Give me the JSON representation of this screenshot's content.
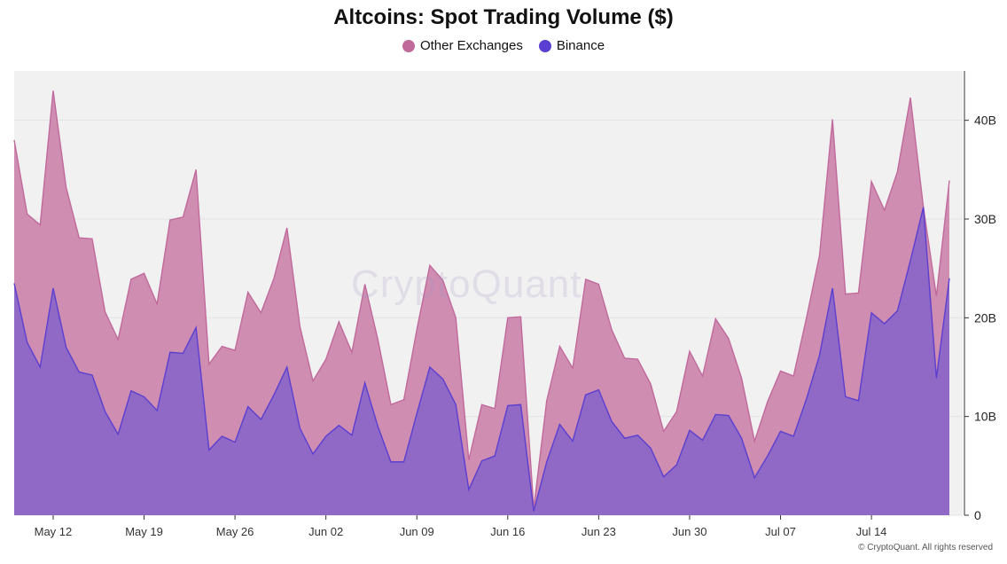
{
  "chart_data": {
    "type": "area",
    "title": "Altcoins: Spot Trading Volume ($)",
    "xlabel": "",
    "ylabel": "",
    "ylim": [
      0,
      45
    ],
    "y_unit": "B",
    "y_ticks": [
      "0",
      "10B",
      "20B",
      "30B",
      "40B"
    ],
    "y_tick_values": [
      0,
      10,
      20,
      30,
      40
    ],
    "x_tick_labels": [
      "May 12",
      "May 19",
      "May 26",
      "Jun 02",
      "Jun 09",
      "Jun 16",
      "Jun 23",
      "Jun 30",
      "Jul 07",
      "Jul 14"
    ],
    "x_tick_indices": [
      3,
      10,
      17,
      24,
      31,
      38,
      45,
      52,
      59,
      66
    ],
    "grid": true,
    "stacked": true,
    "legend_position": "top-center",
    "series": [
      {
        "name": "Binance",
        "color": "#5a3fd0",
        "fill": "#9068c6",
        "values": [
          23.5,
          17.5,
          15,
          23,
          17,
          14.5,
          14.2,
          10.5,
          8.2,
          12.6,
          12,
          10.6,
          16.5,
          16.4,
          19,
          6.6,
          8,
          7.4,
          11,
          9.7,
          12.2,
          15,
          8.8,
          6.2,
          8,
          9.1,
          8.1,
          13.4,
          9,
          5.4,
          5.4,
          10.3,
          15,
          13.8,
          11.2,
          2.6,
          5.5,
          6,
          11.1,
          11.2,
          0.4,
          5.4,
          9.2,
          7.5,
          12.2,
          12.7,
          9.5,
          7.8,
          8.1,
          6.8,
          3.9,
          5.1,
          8.6,
          7.6,
          10.2,
          10.1,
          7.8,
          3.8,
          6,
          8.5,
          8,
          11.8,
          16.2,
          23,
          12,
          11.6,
          20.5,
          19.4,
          20.7,
          25.8,
          31.2,
          13.9,
          24
        ]
      },
      {
        "name": "Other Exchanges",
        "color": "#c06a9c",
        "fill": "#cf8db1",
        "values": [
          14.5,
          13,
          14.4,
          20,
          16.2,
          13.6,
          13.8,
          10.1,
          9.6,
          11.3,
          12.5,
          10.8,
          13.4,
          13.8,
          16,
          8.7,
          9.1,
          9.3,
          11.6,
          10.8,
          11.8,
          14.1,
          10.3,
          7.4,
          7.8,
          10.5,
          8.4,
          10,
          8.8,
          5.8,
          6.3,
          8.5,
          10.3,
          10,
          8.8,
          3,
          5.7,
          4.8,
          8.9,
          8.9,
          0.3,
          6.2,
          7.9,
          7.4,
          11.7,
          10.7,
          9.3,
          8.1,
          7.7,
          6.5,
          4.6,
          5.4,
          8,
          6.5,
          9.7,
          7.8,
          6.1,
          3.7,
          5.5,
          6.1,
          6.1,
          8.2,
          10.1,
          17.1,
          10.4,
          10.9,
          13.3,
          11.5,
          14.1,
          16.5,
          0,
          8.3,
          9.9
        ]
      }
    ]
  },
  "legend": {
    "items": [
      {
        "label": "Other Exchanges",
        "color": "#c06a9c"
      },
      {
        "label": "Binance",
        "color": "#5a3fd0"
      }
    ]
  },
  "watermark": "CryptoQuant",
  "copyright": "© CryptoQuant. All rights reserved",
  "colors": {
    "plot_background": "#f2f1f2",
    "grid": "#e3e2e4",
    "axis": "#333333"
  }
}
